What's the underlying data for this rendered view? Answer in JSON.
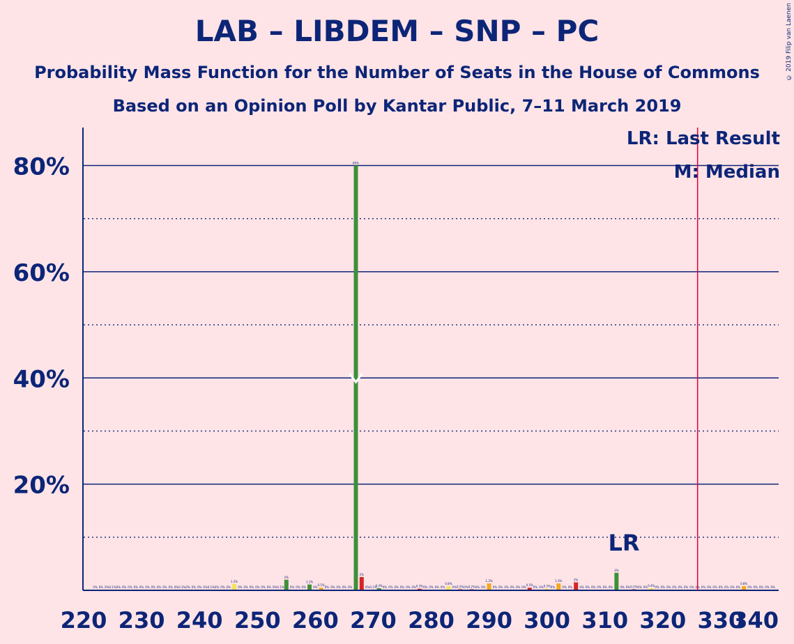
{
  "title": "LAB – LIBDEM – SNP – PC",
  "subtitle": "Probability Mass Function for the Number of Seats in the House of Commons",
  "poll": "Based on an Opinion Poll by Kantar Public, 7–11 March 2019",
  "copyright": "© 2019 Filip van Laenen",
  "legend": {
    "lr": "LR: Last Result",
    "median": "M: Median"
  },
  "lr_marker": "LR",
  "colors": {
    "background": "#ffe4e7",
    "text": "#0c2577",
    "majority_line": "#e0003c",
    "green": "#3f8f3a",
    "red": "#d62424",
    "orange": "#f2a81d",
    "yellow": "#f5e15a"
  },
  "chart_data": {
    "type": "bar",
    "xlim": [
      220,
      340
    ],
    "ylim": [
      0,
      87
    ],
    "x_ticks": [
      220,
      230,
      240,
      250,
      260,
      270,
      280,
      290,
      300,
      310,
      320,
      330,
      340
    ],
    "y_ticks": [
      20,
      40,
      60,
      80
    ],
    "y_tick_labels": [
      "20%",
      "40%",
      "60%",
      "80%"
    ],
    "grid": "solid at 20% steps, dotted at 10% steps",
    "majority_line_x": 326,
    "last_result_x": 314,
    "median_x": 267,
    "bars": [
      {
        "x": 222,
        "value": 0.05,
        "label": "0%",
        "color": "red"
      },
      {
        "x": 223,
        "value": 0.05,
        "label": "0%",
        "color": "red"
      },
      {
        "x": 224,
        "value": 0.05,
        "label": "0%",
        "color": "red"
      },
      {
        "x": 225,
        "value": 0.1,
        "label": "0.1%",
        "color": "red"
      },
      {
        "x": 226,
        "value": 0.05,
        "label": "0%",
        "color": "red"
      },
      {
        "x": 227,
        "value": 0.05,
        "label": "0%",
        "color": "red"
      },
      {
        "x": 228,
        "value": 0.05,
        "label": "0%",
        "color": "red"
      },
      {
        "x": 229,
        "value": 0.05,
        "label": "0%",
        "color": "red"
      },
      {
        "x": 230,
        "value": 0.05,
        "label": "0%",
        "color": "red"
      },
      {
        "x": 231,
        "value": 0.05,
        "label": "0%",
        "color": "red"
      },
      {
        "x": 232,
        "value": 0.05,
        "label": "0%",
        "color": "red"
      },
      {
        "x": 233,
        "value": 0.05,
        "label": "0%",
        "color": "red"
      },
      {
        "x": 234,
        "value": 0.05,
        "label": "0%",
        "color": "red"
      },
      {
        "x": 235,
        "value": 0.05,
        "label": "0%",
        "color": "red"
      },
      {
        "x": 236,
        "value": 0.05,
        "label": "0%",
        "color": "red"
      },
      {
        "x": 237,
        "value": 0.1,
        "label": "0.1%",
        "color": "red"
      },
      {
        "x": 238,
        "value": 0.05,
        "label": "0%",
        "color": "red"
      },
      {
        "x": 239,
        "value": 0.05,
        "label": "0%",
        "color": "red"
      },
      {
        "x": 240,
        "value": 0.05,
        "label": "0%",
        "color": "red"
      },
      {
        "x": 241,
        "value": 0.05,
        "label": "0%",
        "color": "red"
      },
      {
        "x": 242,
        "value": 0.1,
        "label": "0.1%",
        "color": "red"
      },
      {
        "x": 243,
        "value": 0.05,
        "label": "0%",
        "color": "red"
      },
      {
        "x": 244,
        "value": 0.05,
        "label": "0%",
        "color": "red"
      },
      {
        "x": 245,
        "value": 0.05,
        "label": "0%",
        "color": "red"
      },
      {
        "x": 246,
        "value": 1.2,
        "label": "1.2%",
        "color": "yellow"
      },
      {
        "x": 247,
        "value": 0.05,
        "label": "0%",
        "color": "red"
      },
      {
        "x": 248,
        "value": 0.05,
        "label": "0%",
        "color": "red"
      },
      {
        "x": 249,
        "value": 0.05,
        "label": "0%",
        "color": "red"
      },
      {
        "x": 250,
        "value": 0.05,
        "label": "0%",
        "color": "red"
      },
      {
        "x": 251,
        "value": 0.05,
        "label": "0%",
        "color": "red"
      },
      {
        "x": 252,
        "value": 0.05,
        "label": "0%",
        "color": "red"
      },
      {
        "x": 253,
        "value": 0.05,
        "label": "0%",
        "color": "red"
      },
      {
        "x": 254,
        "value": 0.1,
        "label": "0.1%",
        "color": "red"
      },
      {
        "x": 255,
        "value": 2,
        "label": "2%",
        "color": "green"
      },
      {
        "x": 256,
        "value": 0.05,
        "label": "0%",
        "color": "red"
      },
      {
        "x": 257,
        "value": 0.05,
        "label": "0%",
        "color": "red"
      },
      {
        "x": 258,
        "value": 0.05,
        "label": "0%",
        "color": "red"
      },
      {
        "x": 259,
        "value": 1.1,
        "label": "1.1%",
        "color": "green"
      },
      {
        "x": 260,
        "value": 0.05,
        "label": "0%",
        "color": "red"
      },
      {
        "x": 261,
        "value": 0.5,
        "label": "0.5%",
        "color": "orange"
      },
      {
        "x": 262,
        "value": 0.05,
        "label": "0%",
        "color": "red"
      },
      {
        "x": 263,
        "value": 0.05,
        "label": "0%",
        "color": "red"
      },
      {
        "x": 264,
        "value": 0.05,
        "label": "0%",
        "color": "red"
      },
      {
        "x": 265,
        "value": 0.05,
        "label": "0%",
        "color": "red"
      },
      {
        "x": 266,
        "value": 0.05,
        "label": "0%",
        "color": "red"
      },
      {
        "x": 267,
        "value": 80,
        "label": "80%",
        "color": "green"
      },
      {
        "x": 268,
        "value": 2.5,
        "label": "2%",
        "color": "red"
      },
      {
        "x": 269,
        "value": 0.05,
        "label": "0%",
        "color": "red"
      },
      {
        "x": 270,
        "value": 0.1,
        "label": "0.1%",
        "color": "red"
      },
      {
        "x": 271,
        "value": 0.4,
        "label": "0.4%",
        "color": "green"
      },
      {
        "x": 272,
        "value": 0.05,
        "label": "0%",
        "color": "red"
      },
      {
        "x": 273,
        "value": 0.05,
        "label": "0%",
        "color": "red"
      },
      {
        "x": 274,
        "value": 0.05,
        "label": "0%",
        "color": "red"
      },
      {
        "x": 275,
        "value": 0.05,
        "label": "0%",
        "color": "red"
      },
      {
        "x": 276,
        "value": 0.05,
        "label": "0%",
        "color": "red"
      },
      {
        "x": 277,
        "value": 0.05,
        "label": "0%",
        "color": "red"
      },
      {
        "x": 278,
        "value": 0.3,
        "label": "0.3%",
        "color": "red"
      },
      {
        "x": 279,
        "value": 0.05,
        "label": "0%",
        "color": "red"
      },
      {
        "x": 280,
        "value": 0.05,
        "label": "0%",
        "color": "red"
      },
      {
        "x": 281,
        "value": 0.05,
        "label": "0%",
        "color": "red"
      },
      {
        "x": 282,
        "value": 0.05,
        "label": "0%",
        "color": "red"
      },
      {
        "x": 283,
        "value": 0.8,
        "label": "0.8%",
        "color": "yellow"
      },
      {
        "x": 284,
        "value": 0.05,
        "label": "0%",
        "color": "red"
      },
      {
        "x": 285,
        "value": 0.2,
        "label": "0.2%",
        "color": "red"
      },
      {
        "x": 286,
        "value": 0.05,
        "label": "0%",
        "color": "red"
      },
      {
        "x": 287,
        "value": 0.2,
        "label": "0.2%",
        "color": "red"
      },
      {
        "x": 288,
        "value": 0.05,
        "label": "0%",
        "color": "red"
      },
      {
        "x": 289,
        "value": 0.05,
        "label": "0%",
        "color": "red"
      },
      {
        "x": 290,
        "value": 1.3,
        "label": "1.3%",
        "color": "orange"
      },
      {
        "x": 291,
        "value": 0.05,
        "label": "0%",
        "color": "red"
      },
      {
        "x": 292,
        "value": 0.05,
        "label": "0%",
        "color": "red"
      },
      {
        "x": 293,
        "value": 0.05,
        "label": "0%",
        "color": "red"
      },
      {
        "x": 294,
        "value": 0.05,
        "label": "0%",
        "color": "red"
      },
      {
        "x": 295,
        "value": 0.05,
        "label": "0%",
        "color": "red"
      },
      {
        "x": 296,
        "value": 0.05,
        "label": "0%",
        "color": "red"
      },
      {
        "x": 297,
        "value": 0.5,
        "label": "0.5%",
        "color": "red"
      },
      {
        "x": 298,
        "value": 0.05,
        "label": "0%",
        "color": "red"
      },
      {
        "x": 299,
        "value": 0.05,
        "label": "0%",
        "color": "red"
      },
      {
        "x": 300,
        "value": 0.3,
        "label": "0.3%",
        "color": "yellow"
      },
      {
        "x": 301,
        "value": 0.05,
        "label": "0%",
        "color": "red"
      },
      {
        "x": 302,
        "value": 1.3,
        "label": "1.3%",
        "color": "orange"
      },
      {
        "x": 303,
        "value": 0.05,
        "label": "0%",
        "color": "red"
      },
      {
        "x": 304,
        "value": 0.05,
        "label": "0%",
        "color": "red"
      },
      {
        "x": 305,
        "value": 1.5,
        "label": "2%",
        "color": "red"
      },
      {
        "x": 306,
        "value": 0.05,
        "label": "0%",
        "color": "red"
      },
      {
        "x": 307,
        "value": 0.05,
        "label": "0%",
        "color": "red"
      },
      {
        "x": 308,
        "value": 0.05,
        "label": "0%",
        "color": "red"
      },
      {
        "x": 309,
        "value": 0.05,
        "label": "0%",
        "color": "red"
      },
      {
        "x": 310,
        "value": 0.05,
        "label": "0%",
        "color": "red"
      },
      {
        "x": 311,
        "value": 0.05,
        "label": "0%",
        "color": "red"
      },
      {
        "x": 312,
        "value": 3.3,
        "label": "3%",
        "color": "green"
      },
      {
        "x": 313,
        "value": 0.05,
        "label": "0%",
        "color": "red"
      },
      {
        "x": 314,
        "value": 0.05,
        "label": "0%",
        "color": "red"
      },
      {
        "x": 315,
        "value": 0.2,
        "label": "0.2%",
        "color": "red"
      },
      {
        "x": 316,
        "value": 0.05,
        "label": "0%",
        "color": "red"
      },
      {
        "x": 317,
        "value": 0.05,
        "label": "0%",
        "color": "red"
      },
      {
        "x": 318,
        "value": 0.4,
        "label": "0.4%",
        "color": "yellow"
      },
      {
        "x": 319,
        "value": 0.05,
        "label": "0%",
        "color": "red"
      },
      {
        "x": 320,
        "value": 0.05,
        "label": "0%",
        "color": "red"
      },
      {
        "x": 321,
        "value": 0.05,
        "label": "0%",
        "color": "red"
      },
      {
        "x": 322,
        "value": 0.05,
        "label": "0%",
        "color": "red"
      },
      {
        "x": 323,
        "value": 0.05,
        "label": "0%",
        "color": "red"
      },
      {
        "x": 324,
        "value": 0.05,
        "label": "0%",
        "color": "red"
      },
      {
        "x": 325,
        "value": 0.05,
        "label": "0%",
        "color": "red"
      },
      {
        "x": 326,
        "value": 0.05,
        "label": "0%",
        "color": "red"
      },
      {
        "x": 327,
        "value": 0.05,
        "label": "0%",
        "color": "red"
      },
      {
        "x": 328,
        "value": 0.05,
        "label": "0%",
        "color": "red"
      },
      {
        "x": 329,
        "value": 0.05,
        "label": "0%",
        "color": "red"
      },
      {
        "x": 330,
        "value": 0.05,
        "label": "0%",
        "color": "red"
      },
      {
        "x": 331,
        "value": 0.05,
        "label": "0%",
        "color": "red"
      },
      {
        "x": 332,
        "value": 0.05,
        "label": "0%",
        "color": "red"
      },
      {
        "x": 333,
        "value": 0.05,
        "label": "0%",
        "color": "red"
      },
      {
        "x": 334,
        "value": 0.8,
        "label": "0.8%",
        "color": "orange"
      },
      {
        "x": 335,
        "value": 0.05,
        "label": "0%",
        "color": "red"
      },
      {
        "x": 336,
        "value": 0.05,
        "label": "0%",
        "color": "red"
      },
      {
        "x": 337,
        "value": 0.05,
        "label": "0%",
        "color": "red"
      },
      {
        "x": 338,
        "value": 0.05,
        "label": "0%",
        "color": "red"
      },
      {
        "x": 339,
        "value": 0.05,
        "label": "0%",
        "color": "red"
      }
    ]
  }
}
